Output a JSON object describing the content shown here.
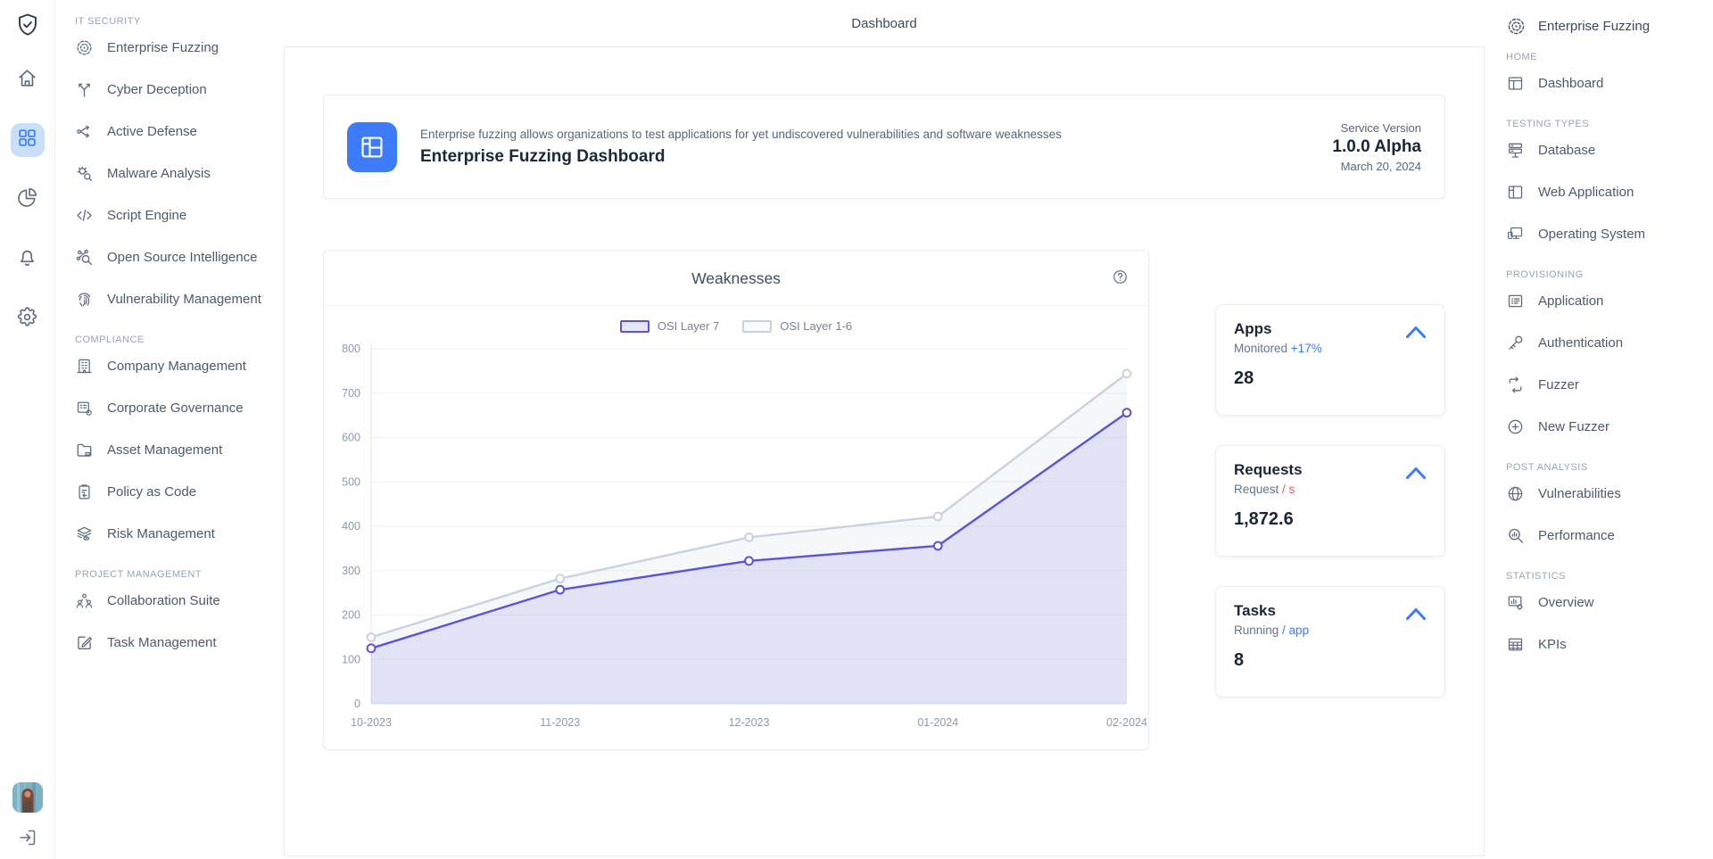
{
  "topbar": {
    "title": "Dashboard"
  },
  "colors": {
    "accent_blue": "#3b7cf7",
    "accent_red": "#f2545b",
    "purple": "#5b54d9",
    "gray_line": "#c9d2de"
  },
  "left_rail": {
    "logo_icon": "shield-check-icon",
    "items": [
      {
        "icon": "home-icon",
        "active": false
      },
      {
        "icon": "grid-icon",
        "active": true
      },
      {
        "icon": "pie-chart-icon",
        "active": false
      },
      {
        "icon": "bell-icon",
        "active": false
      },
      {
        "icon": "gear-icon",
        "active": false
      }
    ],
    "avatar_icon": "user-avatar",
    "logout_icon": "logout-icon"
  },
  "left_sidebar": {
    "sections": [
      {
        "label": "IT SECURITY",
        "items": [
          {
            "icon": "target-icon",
            "label": "Enterprise Fuzzing"
          },
          {
            "icon": "branch-icon",
            "label": "Cyber Deception"
          },
          {
            "icon": "network-arrows-icon",
            "label": "Active Defense"
          },
          {
            "icon": "bug-search-icon",
            "label": "Malware Analysis"
          },
          {
            "icon": "code-icon",
            "label": "Script Engine"
          },
          {
            "icon": "osint-search-icon",
            "label": "Open Source Intelligence"
          },
          {
            "icon": "fingerprint-icon",
            "label": "Vulnerability Management"
          }
        ]
      },
      {
        "label": "COMPLIANCE",
        "items": [
          {
            "icon": "building-icon",
            "label": "Company Management"
          },
          {
            "icon": "list-gear-icon",
            "label": "Corporate Governance"
          },
          {
            "icon": "folder-icon",
            "label": "Asset Management"
          },
          {
            "icon": "clipboard-icon",
            "label": "Policy as Code"
          },
          {
            "icon": "layers-eye-icon",
            "label": "Risk Management"
          }
        ]
      },
      {
        "label": "PROJECT MANAGEMENT",
        "items": [
          {
            "icon": "team-icon",
            "label": "Collaboration Suite"
          },
          {
            "icon": "edit-square-icon",
            "label": "Task Management"
          }
        ]
      }
    ]
  },
  "header_card": {
    "icon": "dashboard-tile-icon",
    "description": "Enterprise fuzzing allows organizations to test applications for yet undiscovered vulnerabilities and software weaknesses",
    "title": "Enterprise Fuzzing Dashboard",
    "service_version_label": "Service Version",
    "version": "1.0.0 Alpha",
    "date": "March 20, 2024"
  },
  "chart_card": {
    "title": "Weaknesses",
    "help_icon": "help-circle-icon"
  },
  "chart_data": {
    "type": "area",
    "title": "Weaknesses",
    "x": [
      "10-2023",
      "11-2023",
      "12-2023",
      "01-2024",
      "02-2024"
    ],
    "series": [
      {
        "name": "OSI Layer 7",
        "color": "#5b54d9",
        "fill": "rgba(91,84,217,0.13)",
        "legend_fill": "#e8e7fa",
        "values": [
          125,
          257,
          322,
          356,
          656
        ]
      },
      {
        "name": "OSI Layer 1-6",
        "color": "#c9d2de",
        "fill": "rgba(200,208,220,0.18)",
        "legend_fill": "#fafbfd",
        "values": [
          150,
          282,
          375,
          422,
          744
        ]
      }
    ],
    "ylim": [
      0,
      800
    ],
    "ytick_step": 100,
    "grid": true,
    "legend_position": "top"
  },
  "stat_cards": [
    {
      "title": "Apps",
      "subtitle": "Monitored",
      "subtitle_accent": "+17%",
      "accent_color": "#3b7cf7",
      "chevron_color": "#3b7cf7",
      "value": "28"
    },
    {
      "title": "Requests",
      "subtitle": "Request",
      "subtitle_accent": "/ s",
      "accent_color": "#f2545b",
      "chevron_color": "#3b7cf7",
      "value": "1,872.6"
    },
    {
      "title": "Tasks",
      "subtitle": "Running",
      "subtitle_accent": "/ app",
      "accent_color": "#3b7cf7",
      "chevron_color": "#3b7cf7",
      "value": "8"
    }
  ],
  "right_sidebar": {
    "brand": {
      "icon": "target-icon",
      "label": "Enterprise Fuzzing"
    },
    "sections": [
      {
        "label": "HOME",
        "items": [
          {
            "icon": "dashboard-icon",
            "label": "Dashboard"
          }
        ]
      },
      {
        "label": "TESTING TYPES",
        "items": [
          {
            "icon": "database-icon",
            "label": "Database"
          },
          {
            "icon": "window-icon",
            "label": "Web Application"
          },
          {
            "icon": "monitor-icon",
            "label": "Operating System"
          }
        ]
      },
      {
        "label": "PROVISIONING",
        "items": [
          {
            "icon": "list-card-icon",
            "label": "Application"
          },
          {
            "icon": "key-icon",
            "label": "Authentication"
          },
          {
            "icon": "refresh-icon",
            "label": "Fuzzer"
          },
          {
            "icon": "plus-circle-icon",
            "label": "New Fuzzer"
          }
        ]
      },
      {
        "label": "POST ANALYSIS",
        "items": [
          {
            "icon": "globe-icon",
            "label": "Vulnerabilities"
          },
          {
            "icon": "chart-search-icon",
            "label": "Performance"
          }
        ]
      },
      {
        "label": "STATISTICS",
        "items": [
          {
            "icon": "chart-board-icon",
            "label": "Overview"
          },
          {
            "icon": "table-icon",
            "label": "KPIs"
          }
        ]
      }
    ]
  }
}
